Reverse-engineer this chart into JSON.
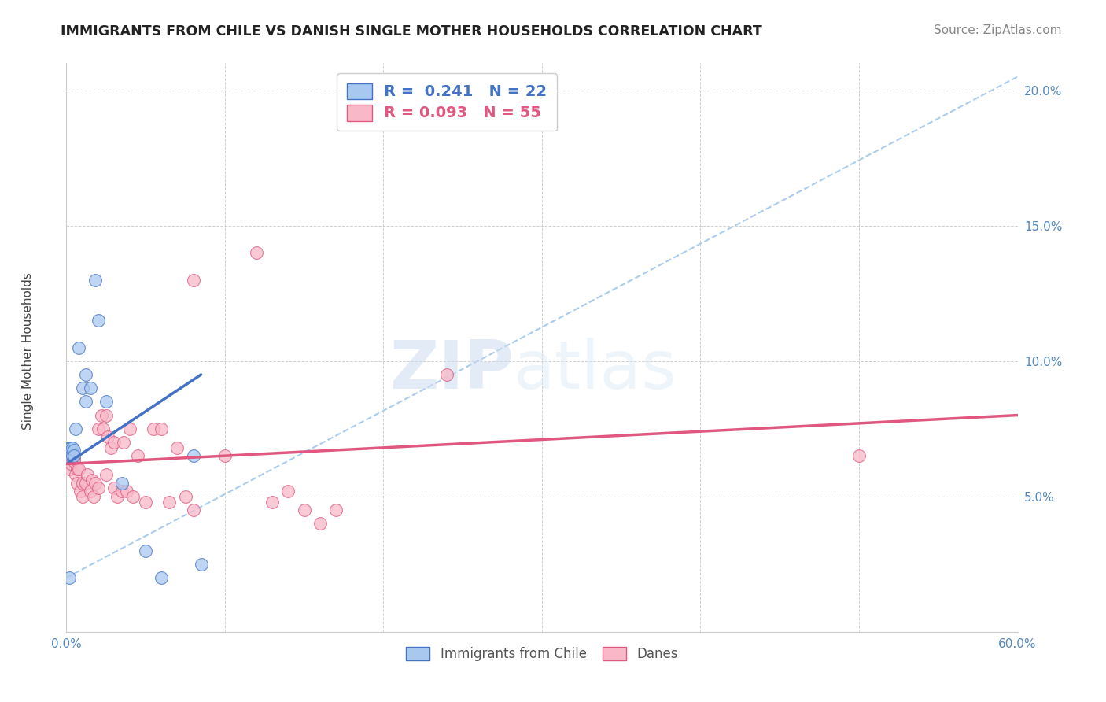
{
  "title": "IMMIGRANTS FROM CHILE VS DANISH SINGLE MOTHER HOUSEHOLDS CORRELATION CHART",
  "source": "Source: ZipAtlas.com",
  "ylabel": "Single Mother Households",
  "xlim": [
    0.0,
    0.6
  ],
  "ylim": [
    0.0,
    0.21
  ],
  "xticks_shown": [
    0.0,
    0.6
  ],
  "xtick_labels_shown": [
    "0.0%",
    "60.0%"
  ],
  "xticks_grid": [
    0.0,
    0.1,
    0.2,
    0.3,
    0.4,
    0.5,
    0.6
  ],
  "yticks": [
    0.05,
    0.1,
    0.15,
    0.2
  ],
  "ytick_labels": [
    "5.0%",
    "10.0%",
    "15.0%",
    "20.0%"
  ],
  "grid_color": "#cccccc",
  "background_color": "#ffffff",
  "watermark_zip": "ZIP",
  "watermark_atlas": "atlas",
  "legend_r1": "R =  0.241",
  "legend_n1": "N = 22",
  "legend_r2": "R = 0.093",
  "legend_n2": "N = 55",
  "scatter_blue": [
    [
      0.002,
      0.068
    ],
    [
      0.003,
      0.065
    ],
    [
      0.003,
      0.068
    ],
    [
      0.004,
      0.065
    ],
    [
      0.004,
      0.068
    ],
    [
      0.005,
      0.067
    ],
    [
      0.005,
      0.065
    ],
    [
      0.006,
      0.075
    ],
    [
      0.008,
      0.105
    ],
    [
      0.01,
      0.09
    ],
    [
      0.012,
      0.085
    ],
    [
      0.012,
      0.095
    ],
    [
      0.015,
      0.09
    ],
    [
      0.018,
      0.13
    ],
    [
      0.02,
      0.115
    ],
    [
      0.025,
      0.085
    ],
    [
      0.035,
      0.055
    ],
    [
      0.05,
      0.03
    ],
    [
      0.06,
      0.02
    ],
    [
      0.08,
      0.065
    ],
    [
      0.085,
      0.025
    ],
    [
      0.002,
      0.02
    ]
  ],
  "scatter_pink": [
    [
      0.001,
      0.065
    ],
    [
      0.002,
      0.063
    ],
    [
      0.002,
      0.06
    ],
    [
      0.003,
      0.065
    ],
    [
      0.003,
      0.062
    ],
    [
      0.004,
      0.065
    ],
    [
      0.005,
      0.064
    ],
    [
      0.005,
      0.063
    ],
    [
      0.006,
      0.058
    ],
    [
      0.007,
      0.06
    ],
    [
      0.007,
      0.055
    ],
    [
      0.008,
      0.06
    ],
    [
      0.009,
      0.052
    ],
    [
      0.01,
      0.055
    ],
    [
      0.01,
      0.05
    ],
    [
      0.012,
      0.055
    ],
    [
      0.013,
      0.058
    ],
    [
      0.015,
      0.052
    ],
    [
      0.016,
      0.056
    ],
    [
      0.017,
      0.05
    ],
    [
      0.018,
      0.055
    ],
    [
      0.02,
      0.053
    ],
    [
      0.02,
      0.075
    ],
    [
      0.022,
      0.08
    ],
    [
      0.023,
      0.075
    ],
    [
      0.025,
      0.08
    ],
    [
      0.025,
      0.058
    ],
    [
      0.026,
      0.072
    ],
    [
      0.028,
      0.068
    ],
    [
      0.03,
      0.07
    ],
    [
      0.03,
      0.053
    ],
    [
      0.032,
      0.05
    ],
    [
      0.035,
      0.052
    ],
    [
      0.036,
      0.07
    ],
    [
      0.038,
      0.052
    ],
    [
      0.04,
      0.075
    ],
    [
      0.042,
      0.05
    ],
    [
      0.045,
      0.065
    ],
    [
      0.05,
      0.048
    ],
    [
      0.055,
      0.075
    ],
    [
      0.06,
      0.075
    ],
    [
      0.065,
      0.048
    ],
    [
      0.07,
      0.068
    ],
    [
      0.075,
      0.05
    ],
    [
      0.08,
      0.13
    ],
    [
      0.08,
      0.045
    ],
    [
      0.1,
      0.065
    ],
    [
      0.12,
      0.14
    ],
    [
      0.13,
      0.048
    ],
    [
      0.14,
      0.052
    ],
    [
      0.15,
      0.045
    ],
    [
      0.16,
      0.04
    ],
    [
      0.17,
      0.045
    ],
    [
      0.24,
      0.095
    ],
    [
      0.5,
      0.065
    ]
  ],
  "blue_line_x": [
    0.0,
    0.085
  ],
  "blue_line_y": [
    0.062,
    0.095
  ],
  "dashed_line_x": [
    0.0,
    0.6
  ],
  "dashed_line_y": [
    0.02,
    0.205
  ],
  "pink_line_x": [
    0.0,
    0.6
  ],
  "pink_line_y": [
    0.062,
    0.08
  ],
  "blue_color": "#a8c8f0",
  "pink_color": "#f8b8c8",
  "blue_line_color": "#4472c4",
  "pink_line_color": "#e05880",
  "dashed_line_color": "#aaccee",
  "title_fontsize": 12.5,
  "axis_label_fontsize": 11,
  "tick_fontsize": 11,
  "legend_fontsize": 13,
  "source_fontsize": 11,
  "marker_size": 130
}
